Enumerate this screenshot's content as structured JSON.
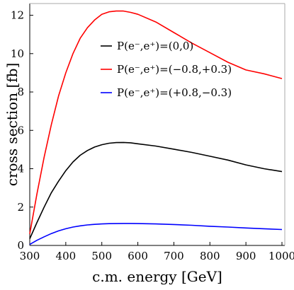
{
  "chart_data": {
    "type": "line",
    "title": "",
    "xlabel": "c.m. energy [GeV]",
    "ylabel": "cross section [fb]",
    "xlim": [
      300,
      1000
    ],
    "ylim": [
      0,
      12.5
    ],
    "xticks": [
      300,
      400,
      500,
      600,
      700,
      800,
      900,
      1000
    ],
    "yticks": [
      0,
      2,
      4,
      6,
      8,
      10,
      12
    ],
    "grid": false,
    "legend_position": "upper-right inside",
    "series": [
      {
        "name": "P(e⁻,e⁺)=(0,0)",
        "color": "#000000",
        "x": [
          300,
          320,
          340,
          360,
          380,
          400,
          420,
          440,
          460,
          480,
          500,
          520,
          540,
          560,
          580,
          600,
          650,
          700,
          750,
          800,
          850,
          900,
          950,
          1000
        ],
        "y": [
          0.35,
          1.2,
          2.0,
          2.75,
          3.35,
          3.9,
          4.35,
          4.7,
          4.95,
          5.13,
          5.25,
          5.33,
          5.36,
          5.37,
          5.35,
          5.3,
          5.18,
          5.02,
          4.85,
          4.65,
          4.45,
          4.2,
          4.0,
          3.85
        ]
      },
      {
        "name": "P(e⁻,e⁺)=(−0.8,+0.3)",
        "color": "#ff0000",
        "x": [
          300,
          320,
          340,
          360,
          380,
          400,
          420,
          440,
          460,
          480,
          500,
          520,
          540,
          560,
          580,
          600,
          650,
          700,
          750,
          800,
          850,
          900,
          950,
          1000
        ],
        "y": [
          0.6,
          2.7,
          4.6,
          6.3,
          7.8,
          9.0,
          10.0,
          10.8,
          11.35,
          11.75,
          12.05,
          12.18,
          12.22,
          12.22,
          12.15,
          12.05,
          11.65,
          11.1,
          10.55,
          10.05,
          9.55,
          9.15,
          8.95,
          8.7
        ]
      },
      {
        "name": "P(e⁻,e⁺)=(+0.8,−0.3)",
        "color": "#0000ff",
        "x": [
          300,
          320,
          340,
          360,
          380,
          400,
          420,
          440,
          460,
          480,
          500,
          520,
          540,
          560,
          580,
          600,
          650,
          700,
          750,
          800,
          850,
          900,
          950,
          1000
        ],
        "y": [
          0.05,
          0.27,
          0.45,
          0.62,
          0.76,
          0.87,
          0.96,
          1.02,
          1.07,
          1.1,
          1.12,
          1.135,
          1.14,
          1.145,
          1.145,
          1.14,
          1.12,
          1.09,
          1.05,
          1.0,
          0.96,
          0.91,
          0.87,
          0.83
        ]
      }
    ]
  }
}
